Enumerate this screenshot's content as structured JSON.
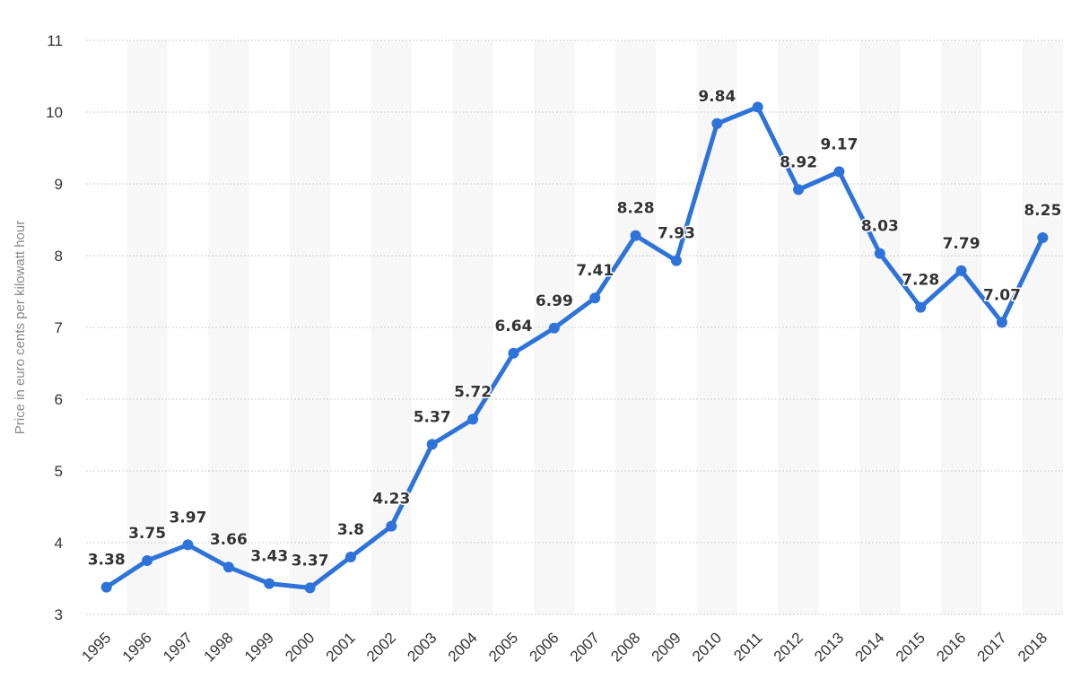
{
  "chart_data": {
    "type": "line",
    "title": "",
    "xlabel": "",
    "ylabel": "Price in euro cents per kilowatt hour",
    "x": [
      "1995",
      "1996",
      "1997",
      "1998",
      "1999",
      "2000",
      "2001",
      "2002",
      "2003",
      "2004",
      "2005",
      "2006",
      "2007",
      "2008",
      "2009",
      "2010",
      "2011",
      "2012",
      "2013",
      "2014",
      "2015",
      "2016",
      "2017",
      "2018"
    ],
    "series": [
      {
        "name": "",
        "values": [
          3.38,
          3.75,
          3.97,
          3.66,
          3.43,
          3.37,
          3.8,
          4.23,
          5.37,
          5.72,
          6.64,
          6.99,
          7.41,
          8.28,
          7.93,
          9.84,
          10.07,
          8.92,
          9.17,
          8.03,
          7.28,
          7.79,
          7.07,
          8.25
        ],
        "labels": [
          "3.38",
          "3.75",
          "3.97",
          "3.66",
          "3.43",
          "3.37",
          "3.8",
          "4.23",
          "5.37",
          "5.72",
          "6.64",
          "6.99",
          "7.41",
          "8.28",
          "7.93",
          "9.84",
          "",
          "8.92",
          "9.17",
          "8.03",
          "7.28",
          "7.79",
          "7.07",
          "8.25"
        ]
      }
    ],
    "ylim": [
      3,
      11
    ],
    "yticks": [
      "3",
      "4",
      "5",
      "6",
      "7",
      "8",
      "9",
      "10",
      "11"
    ],
    "grid": true,
    "colors": {
      "line": "#2e73d9",
      "grid": "#cfcfcf",
      "band": "#f7f7f7"
    }
  }
}
